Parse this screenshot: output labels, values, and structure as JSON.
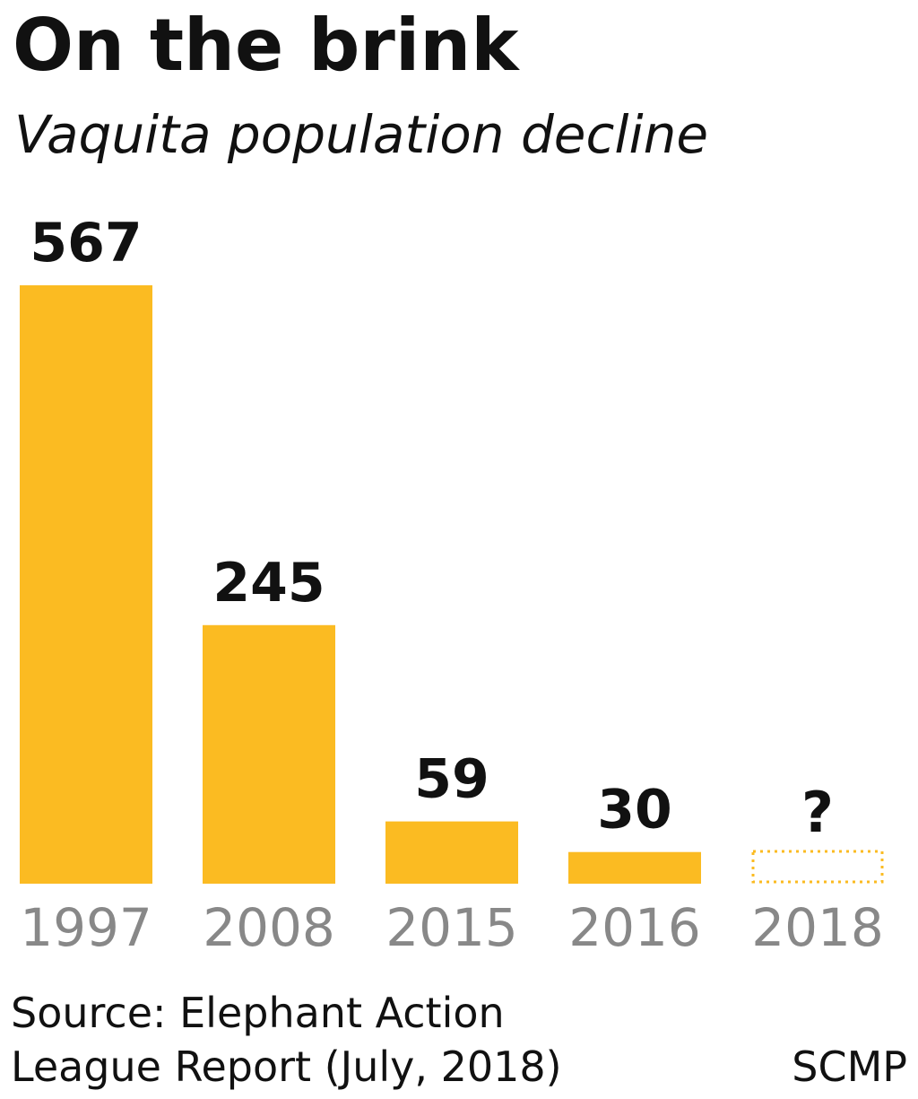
{
  "chart_data": {
    "type": "bar",
    "title": "On the brink",
    "subtitle": "Vaquita population decline",
    "categories": [
      "1997",
      "2008",
      "2015",
      "2016",
      "2018"
    ],
    "values": [
      567,
      245,
      59,
      30,
      null
    ],
    "value_labels": [
      null,
      null,
      null,
      null,
      "?"
    ],
    "color": "#fbbb22",
    "source": [
      "Source: Elephant Action",
      "League Report (July,  2018)"
    ],
    "credit": "SCMP"
  }
}
